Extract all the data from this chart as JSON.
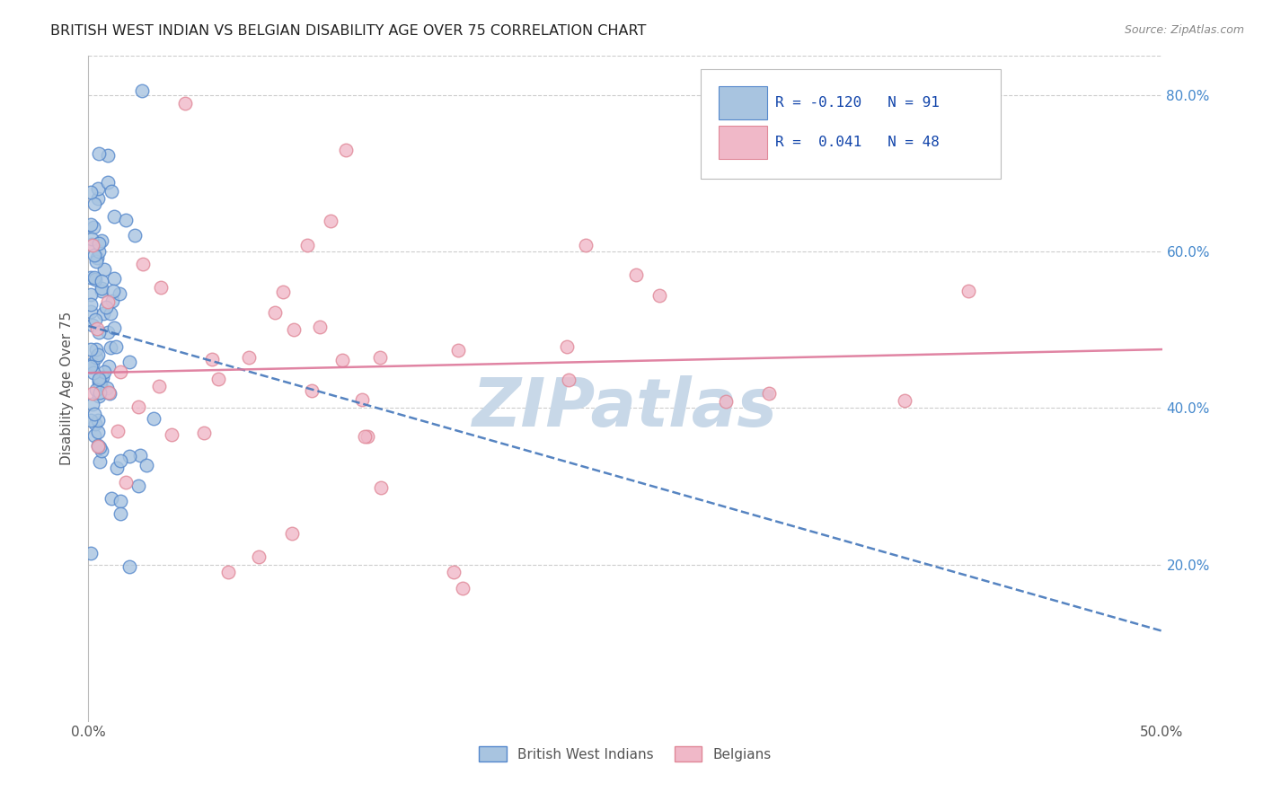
{
  "title": "BRITISH WEST INDIAN VS BELGIAN DISABILITY AGE OVER 75 CORRELATION CHART",
  "source": "Source: ZipAtlas.com",
  "ylabel": "Disability Age Over 75",
  "xlim": [
    0.0,
    0.5
  ],
  "ylim": [
    0.0,
    0.85
  ],
  "xtick_vals": [
    0.0,
    0.5
  ],
  "xtick_labels": [
    "0.0%",
    "50.0%"
  ],
  "ytick_vals": [
    0.2,
    0.4,
    0.6,
    0.8
  ],
  "ytick_labels_right": [
    "20.0%",
    "40.0%",
    "60.0%",
    "80.0%"
  ],
  "legend_labels": [
    "British West Indians",
    "Belgians"
  ],
  "R_bwi": -0.12,
  "N_bwi": 91,
  "R_bel": 0.041,
  "N_bel": 48,
  "color_bwi": "#a8c4e0",
  "color_bwi_edge": "#5588cc",
  "color_bwi_line": "#4477bb",
  "color_bel": "#f0b8c8",
  "color_bel_edge": "#e08898",
  "color_bel_line": "#dd7799",
  "background_color": "#ffffff",
  "grid_color": "#cccccc",
  "watermark": "ZIPatlas",
  "watermark_color": "#c8d8e8",
  "bwi_line_start_y": 0.505,
  "bwi_line_end_y": 0.115,
  "bel_line_start_y": 0.445,
  "bel_line_end_y": 0.475
}
